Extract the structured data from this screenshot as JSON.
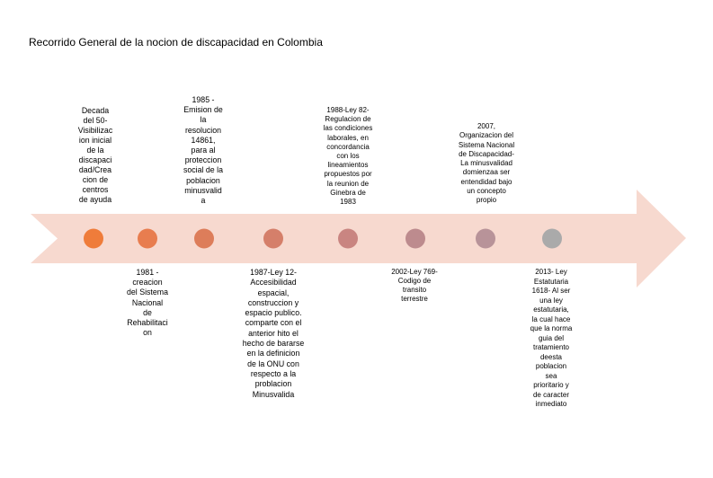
{
  "title": "Recorrido General de la nocion de discapacidad en Colombia",
  "colors": {
    "arrow": "#f7d9cf",
    "background": "#ffffff"
  },
  "milestones": [
    {
      "color": "#ef7c3a",
      "position": "above",
      "text": "Decada\ndel 50-\nVisibilizac\nion inicial\nde la\ndiscapaci\ndad/Crea\ncion de\ncentros\nde ayuda"
    },
    {
      "color": "#e87d4f",
      "position": "below",
      "text": "1981 -\ncreacion\ndel Sistema\nNacional\nde\nRehabilitaci\non"
    },
    {
      "color": "#dd7d5a",
      "position": "above",
      "text": "1985 -\nEmision de\nla\nresolucion\n14861,\npara al\nproteccion\nsocial de la\npoblacion\nminusvalid\na"
    },
    {
      "color": "#d57f6a",
      "position": "below",
      "text": "1987-Ley 12-\nAccesibilidad\nespacial,\nconstruccion y\nespacio publico.\ncomparte con el\nanterior hito el\nhecho de bararse\nen la definicion\nde la ONU con\nrespecto a la\nproblacion\nMinusvalida"
    },
    {
      "color": "#c98581",
      "position": "above",
      "text": "1988-Ley 82-\nRegulacion de\nlas condiciones\nlaborales, en\nconcordancia\ncon los\nlineamientos\npropuestos por\nla reunion de\nGinebra de\n1983"
    },
    {
      "color": "#bd8b8e",
      "position": "below",
      "text": "2002-Ley 769-\nCodigo de\ntransito\nterrestre"
    },
    {
      "color": "#b89399",
      "position": "above",
      "text": "2007,\nOrganizacion del\nSistema Nacional\nde Discapacidad-\nLa minusvalidad\ndomienzaa ser\nentendidad bajo\nun concepto\npropio"
    },
    {
      "color": "#aaaaaa",
      "position": "below",
      "text": "2013- Ley\nEstatutaria\n1618- Al ser\nuna ley\nestatutaria,\nla cual hace\nque la norma\nguia del\ntratamiento\ndeesta\npoblacion\nsea\nprioritario y\nde caracter\ninmediato"
    }
  ]
}
